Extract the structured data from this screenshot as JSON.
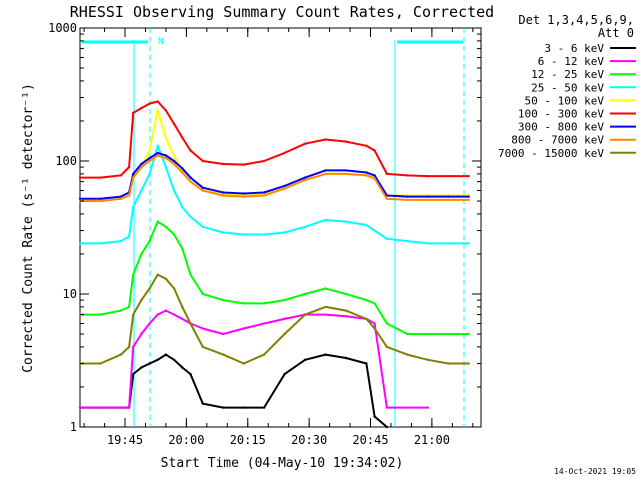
{
  "chart_data": {
    "type": "line",
    "title": "RHESSI Observing Summary Count Rates, Corrected",
    "xlabel": "Start Time (04-May-10 19:34:02)",
    "ylabel": "Corrected Count Rate (s⁻¹ detector⁻¹)",
    "yscale": "log",
    "ylim": [
      1,
      1000
    ],
    "xlim": [
      "19:34",
      "21:12"
    ],
    "x_ticks": [
      "19:45",
      "20:00",
      "20:15",
      "20:30",
      "20:45",
      "21:00"
    ],
    "y_ticks": [
      "1",
      "10",
      "100",
      "1000"
    ],
    "legend_header": [
      "Det 1,3,4,5,6,9,",
      "Att 0"
    ],
    "legend_position": "right",
    "timestamp": "14-Oct-2021 19:05",
    "annotation": "N",
    "x_minutes": [
      0,
      5,
      10,
      12,
      13,
      15,
      17,
      19,
      21,
      23,
      25,
      27,
      30,
      35,
      40,
      45,
      50,
      55,
      60,
      65,
      70,
      72,
      75,
      80,
      85,
      90,
      95
    ],
    "series": [
      {
        "name": "3 - 6 keV",
        "color": "#000000",
        "values": [
          1.4,
          1.4,
          1.4,
          1.4,
          2.5,
          2.8,
          3,
          3.2,
          3.5,
          3.2,
          2.8,
          2.5,
          1.5,
          1.4,
          1.4,
          1.4,
          2.5,
          3.2,
          3.5,
          3.3,
          3,
          1.2,
          1.0,
          null,
          null,
          null,
          null
        ]
      },
      {
        "name": "6 - 12 keV",
        "color": "#ff00ff",
        "values": [
          1.4,
          1.4,
          1.4,
          1.4,
          4,
          5,
          6,
          7,
          7.5,
          7,
          6.5,
          6,
          5.5,
          5,
          5.5,
          6,
          6.5,
          7,
          7,
          6.8,
          6.5,
          6,
          1.4,
          1.4,
          1.4,
          null,
          null
        ]
      },
      {
        "name": "12 - 25 keV",
        "color": "#00ff00",
        "values": [
          7,
          7,
          7.5,
          8,
          14,
          20,
          25,
          35,
          32,
          28,
          22,
          14,
          10,
          9,
          8.5,
          8.5,
          9,
          10,
          11,
          10,
          9,
          8.5,
          6,
          5,
          5,
          5,
          5
        ]
      },
      {
        "name": "25 - 50 keV",
        "color": "#00ffff",
        "values": [
          24,
          24,
          25,
          27,
          45,
          60,
          80,
          130,
          90,
          60,
          45,
          38,
          32,
          29,
          28,
          28,
          29,
          32,
          36,
          35,
          33,
          30,
          26,
          25,
          24,
          24,
          24
        ]
      },
      {
        "name": "50 - 100 keV",
        "color": "#ffff00",
        "values": [
          50,
          50,
          52,
          55,
          75,
          90,
          120,
          240,
          150,
          110,
          85,
          70,
          60,
          56,
          55,
          56,
          62,
          72,
          80,
          80,
          78,
          75,
          55,
          55,
          55,
          55,
          55
        ]
      },
      {
        "name": "100 - 300 keV",
        "color": "#ff0000",
        "values": [
          75,
          75,
          78,
          90,
          230,
          250,
          270,
          280,
          240,
          190,
          150,
          120,
          100,
          95,
          94,
          100,
          115,
          135,
          145,
          140,
          130,
          120,
          80,
          78,
          77,
          77,
          77
        ]
      },
      {
        "name": "300 - 800 keV",
        "color": "#0000ff",
        "values": [
          52,
          52,
          54,
          58,
          80,
          95,
          105,
          115,
          110,
          100,
          88,
          75,
          63,
          58,
          57,
          58,
          65,
          75,
          85,
          85,
          82,
          78,
          55,
          54,
          54,
          54,
          54
        ]
      },
      {
        "name": "800 - 7000 keV",
        "color": "#ff8800",
        "values": [
          50,
          50,
          52,
          55,
          75,
          90,
          100,
          110,
          105,
          95,
          82,
          70,
          60,
          55,
          54,
          55,
          62,
          72,
          80,
          80,
          78,
          74,
          52,
          51,
          51,
          51,
          51
        ]
      },
      {
        "name": "7000 - 15000 keV",
        "color": "#808000",
        "values": [
          3,
          3,
          3.5,
          4,
          7,
          9,
          11,
          14,
          13,
          11,
          8,
          6,
          4,
          3.5,
          3,
          3.5,
          5,
          7,
          8,
          7.5,
          6.5,
          5.5,
          4,
          3.5,
          3.2,
          3,
          3
        ]
      }
    ]
  }
}
